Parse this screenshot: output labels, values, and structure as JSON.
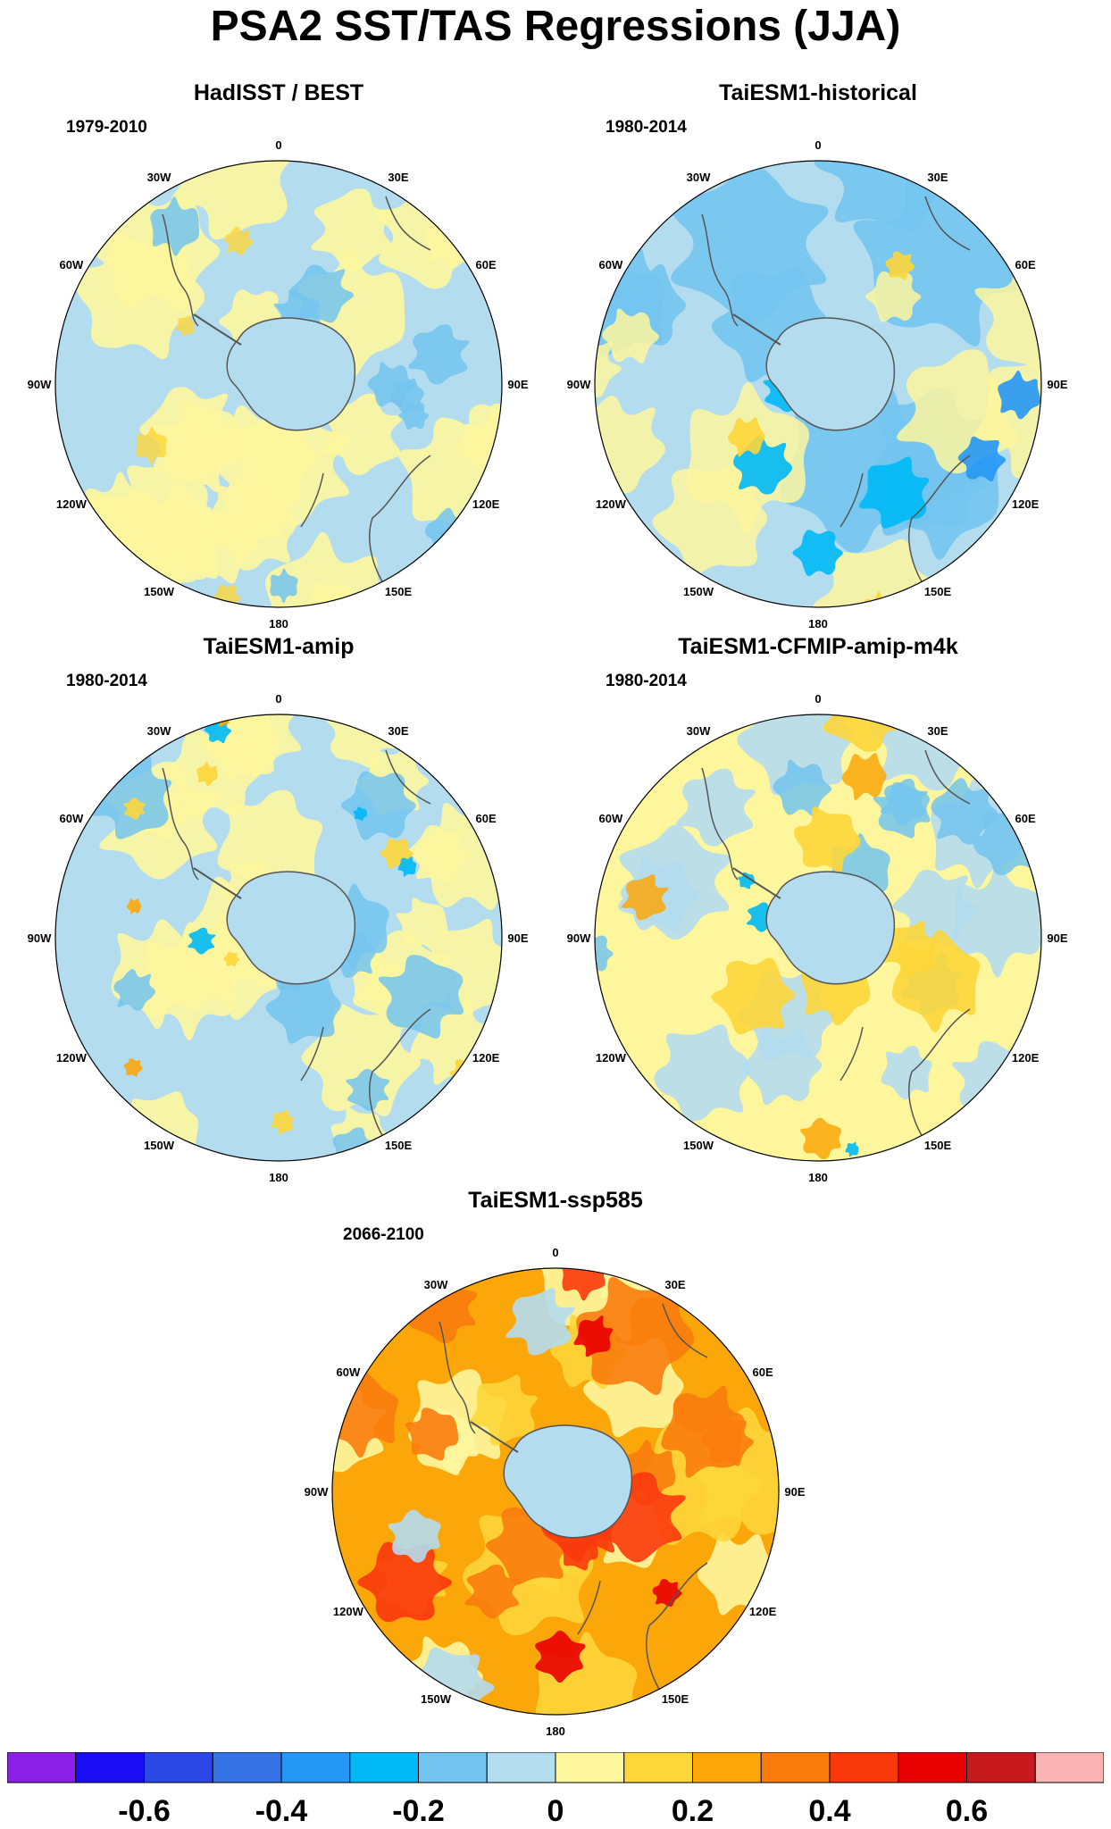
{
  "title": "PSA2 SST/TAS Regressions (JJA)",
  "lon_labels": [
    "0",
    "30E",
    "60E",
    "90E",
    "120E",
    "150E",
    "180",
    "150W",
    "120W",
    "90W",
    "60W",
    "30W"
  ],
  "panels": [
    {
      "name": "HadISST / BEST",
      "period": "1979-2010",
      "style": "weak"
    },
    {
      "name": "TaiESM1-historical",
      "period": "1980-2014",
      "style": "hist"
    },
    {
      "name": "TaiESM1-amip",
      "period": "1980-2014",
      "style": "amip"
    },
    {
      "name": "TaiESM1-CFMIP-amip-m4k",
      "period": "1980-2014",
      "style": "m4k"
    },
    {
      "name": "TaiESM1-ssp585",
      "period": "2066-2100",
      "style": "ssp"
    }
  ],
  "colorbar": {
    "colors": [
      "#8b1fe8",
      "#1a0cf5",
      "#2b47e6",
      "#3674e6",
      "#2597f5",
      "#00b9f5",
      "#73c4ef",
      "#b4dcef",
      "#fdf69d",
      "#fdd63a",
      "#fba70a",
      "#f97c0d",
      "#f9380c",
      "#e90000",
      "#c8191f",
      "#fbb4b4"
    ],
    "levels": [
      -0.7,
      -0.6,
      -0.5,
      -0.4,
      -0.3,
      -0.2,
      -0.1,
      0,
      0.1,
      0.2,
      0.3,
      0.4,
      0.5,
      0.6,
      0.7
    ],
    "tick_labels": [
      "-0.6",
      "-0.4",
      "-0.2",
      "0",
      "0.2",
      "0.4",
      "0.6"
    ]
  }
}
